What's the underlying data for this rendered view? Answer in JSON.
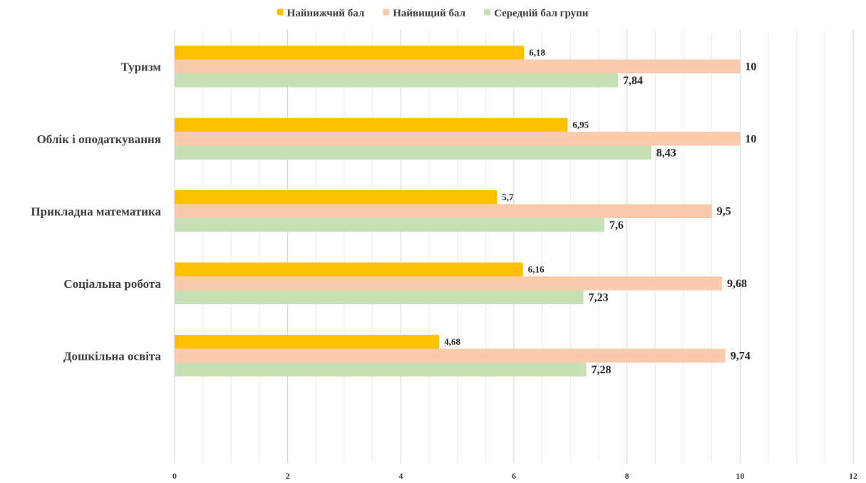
{
  "chart_data": {
    "type": "bar",
    "orientation": "horizontal",
    "categories": [
      "Туризм",
      "Облік і оподаткування",
      "Прикладна математика",
      "Соціальна робота",
      "Дошкільна освіта"
    ],
    "series": [
      {
        "name": "Найнижчий бал",
        "color": "#FFC000",
        "values": [
          6.18,
          6.95,
          5.7,
          6.16,
          4.68
        ],
        "labels": [
          "6,18",
          "6,95",
          "5,7",
          "6,16",
          "4,68"
        ]
      },
      {
        "name": "Найвищий бал",
        "color": "#F8CBAD",
        "values": [
          10,
          10,
          9.5,
          9.68,
          9.74
        ],
        "labels": [
          "10",
          "10",
          "9,5",
          "9,68",
          "9,74"
        ]
      },
      {
        "name": "Середній бал групи",
        "color": "#C5E0B4",
        "values": [
          7.84,
          8.43,
          7.6,
          7.23,
          7.28
        ],
        "labels": [
          "7,84",
          "8,43",
          "7,6",
          "7,23",
          "7,28"
        ]
      }
    ],
    "xlim": [
      0,
      12
    ],
    "x_ticks": [
      "0",
      "2",
      "4",
      "6",
      "8",
      "10",
      "12"
    ],
    "grid": true,
    "legend_position": "top-center"
  }
}
